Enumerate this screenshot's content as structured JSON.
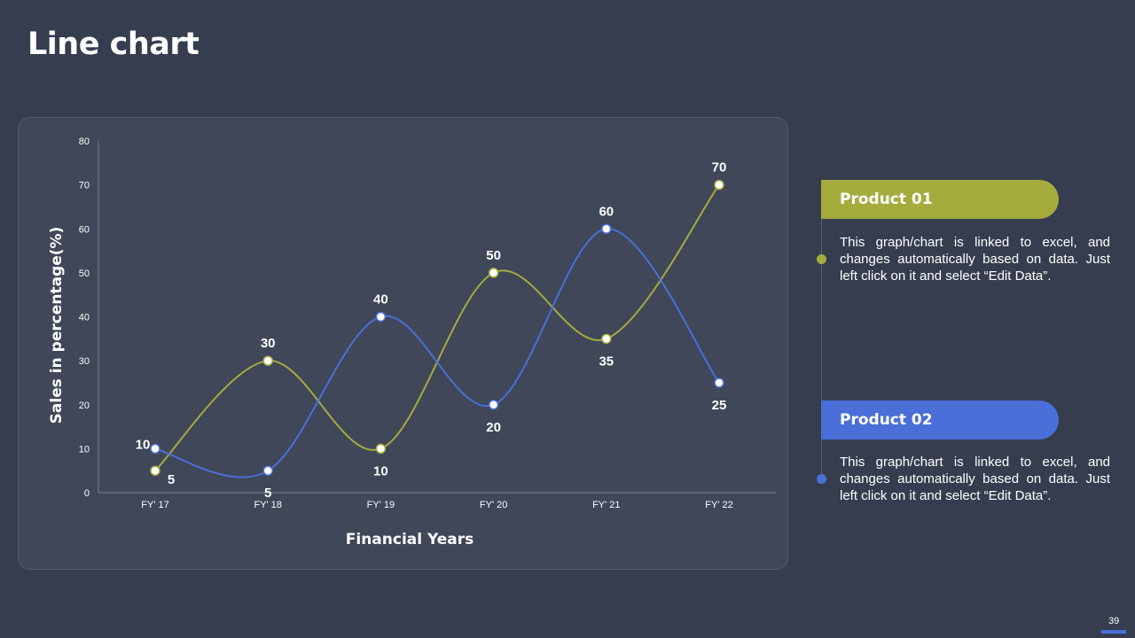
{
  "slide": {
    "title": "Line chart",
    "page_number": "39"
  },
  "colors": {
    "background": "#363d4f",
    "panel": "#404759",
    "product_01": "#a3ac3d",
    "product_02": "#4a6fd8"
  },
  "legend": [
    {
      "label": "Product 01",
      "description": "This graph/chart is linked to excel, and changes automatically based on data. Just left click on it and select “Edit Data”."
    },
    {
      "label": "Product 02",
      "description": "This graph/chart is linked to excel, and changes automatically based on data. Just left click on it and select “Edit Data”."
    }
  ],
  "chart_data": {
    "type": "line",
    "title": "",
    "xlabel": "Financial Years",
    "ylabel": "Sales in percentage(%)",
    "categories": [
      "FY' 17",
      "FY' 18",
      "FY' 19",
      "FY' 20",
      "FY' 21",
      "FY' 22"
    ],
    "ylim": [
      0,
      80
    ],
    "yticks": [
      0,
      10,
      20,
      30,
      40,
      50,
      60,
      70,
      80
    ],
    "grid": false,
    "smooth": true,
    "series": [
      {
        "name": "Product 01",
        "color": "#a3ac3d",
        "values": [
          5,
          30,
          10,
          50,
          35,
          70
        ]
      },
      {
        "name": "Product 02",
        "color": "#4a6fd8",
        "values": [
          10,
          5,
          40,
          20,
          60,
          25
        ]
      }
    ]
  }
}
